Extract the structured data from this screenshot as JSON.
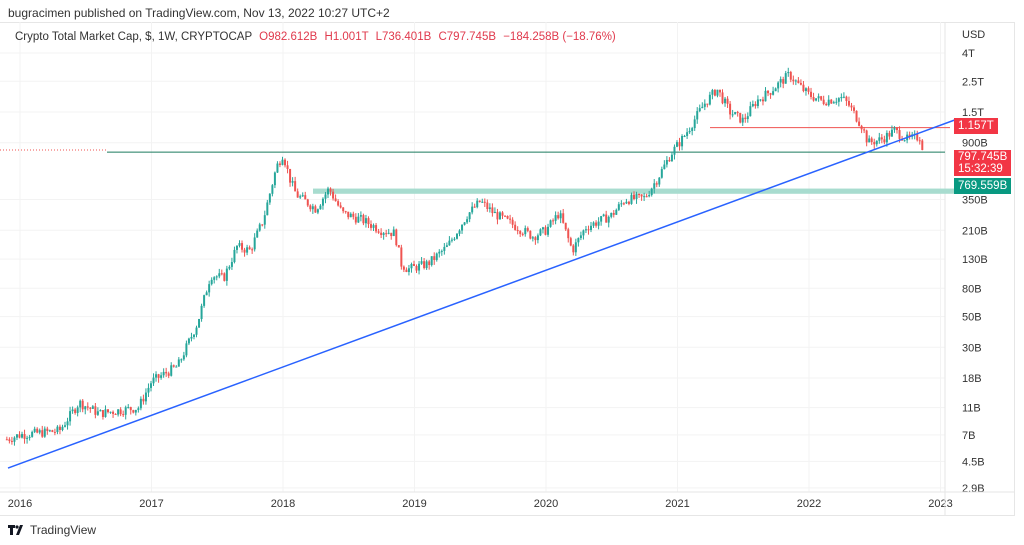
{
  "publisher": "bugracimen published on TradingView.com, Nov 13, 2022 10:27 UTC+2",
  "legend": {
    "symbol": "Crypto Total Market Cap, $, 1W, CRYPTOCAP",
    "open": "O982.612B",
    "high": "H1.001T",
    "low": "L736.401B",
    "close": "C797.745B",
    "change": "−184.258B (−18.76%)"
  },
  "price_tags": {
    "resistance": "1.157T",
    "last_price": "797.745B",
    "countdown": "15:32:39",
    "support": "769.559B"
  },
  "footer": {
    "brand": "TradingView"
  },
  "colors": {
    "up": "#26a69a",
    "down": "#ef5350",
    "trendline": "#2962ff",
    "band": "#a8dccf",
    "tag_red": "#f23645",
    "tag_green": "#089981"
  },
  "chart_data": {
    "type": "candlestick",
    "interval": "1W",
    "scale": "log",
    "y_unit": "USD (billions)",
    "y_ticks": [
      "USD",
      "4T",
      "2.5T",
      "1.5T",
      "900B",
      "350B",
      "210B",
      "130B",
      "80B",
      "50B",
      "30B",
      "18B",
      "11B",
      "7B",
      "4.5B",
      "2.9B"
    ],
    "x_ticks": [
      "2016",
      "2017",
      "2018",
      "2019",
      "2020",
      "2021",
      "2022",
      "2023"
    ],
    "approx_closes": [
      [
        2015.9,
        6.5
      ],
      [
        2016.0,
        7
      ],
      [
        2016.3,
        7.5
      ],
      [
        2016.45,
        12
      ],
      [
        2016.6,
        10
      ],
      [
        2016.9,
        11
      ],
      [
        2017.0,
        17
      ],
      [
        2017.2,
        22
      ],
      [
        2017.35,
        45
      ],
      [
        2017.45,
        100
      ],
      [
        2017.55,
        95
      ],
      [
        2017.65,
        160
      ],
      [
        2017.75,
        150
      ],
      [
        2017.85,
        250
      ],
      [
        2017.95,
        600
      ],
      [
        2018.0,
        750
      ],
      [
        2018.05,
        500
      ],
      [
        2018.1,
        380
      ],
      [
        2018.25,
        300
      ],
      [
        2018.35,
        420
      ],
      [
        2018.45,
        280
      ],
      [
        2018.6,
        250
      ],
      [
        2018.75,
        210
      ],
      [
        2018.85,
        200
      ],
      [
        2018.9,
        120
      ],
      [
        2018.95,
        110
      ],
      [
        2019.1,
        120
      ],
      [
        2019.25,
        160
      ],
      [
        2019.4,
        270
      ],
      [
        2019.5,
        340
      ],
      [
        2019.6,
        280
      ],
      [
        2019.75,
        230
      ],
      [
        2019.9,
        190
      ],
      [
        2020.0,
        210
      ],
      [
        2020.1,
        280
      ],
      [
        2020.2,
        150
      ],
      [
        2020.3,
        220
      ],
      [
        2020.5,
        270
      ],
      [
        2020.6,
        350
      ],
      [
        2020.75,
        360
      ],
      [
        2020.85,
        500
      ],
      [
        2020.95,
        750
      ],
      [
        2021.05,
        1000
      ],
      [
        2021.2,
        1700
      ],
      [
        2021.3,
        2200
      ],
      [
        2021.4,
        1500
      ],
      [
        2021.5,
        1300
      ],
      [
        2021.6,
        1800
      ],
      [
        2021.7,
        2100
      ],
      [
        2021.85,
        2800
      ],
      [
        2021.95,
        2200
      ],
      [
        2022.0,
        2000
      ],
      [
        2022.1,
        1800
      ],
      [
        2022.25,
        1900
      ],
      [
        2022.3,
        1700
      ],
      [
        2022.4,
        1200
      ],
      [
        2022.45,
        900
      ],
      [
        2022.55,
        950
      ],
      [
        2022.65,
        1100
      ],
      [
        2022.75,
        950
      ],
      [
        2022.85,
        1000
      ],
      [
        2022.87,
        797.745
      ]
    ],
    "levels": {
      "resistance": 1157,
      "support": 769.559,
      "zone": [
        385,
        420
      ]
    },
    "trendline": [
      [
        2015.9,
        4.0
      ],
      [
        2022.95,
        1157
      ]
    ]
  }
}
